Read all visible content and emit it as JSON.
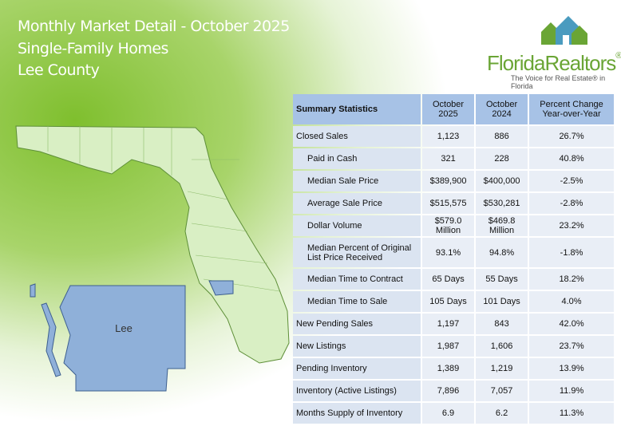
{
  "header": {
    "title": "Monthly Market Detail - October 2025",
    "subtitle": "Single-Family Homes",
    "region": "Lee County"
  },
  "logo": {
    "name": "FloridaRealtors",
    "registered": "®",
    "tagline": "The Voice for Real Estate® in Florida"
  },
  "map": {
    "label": "Lee"
  },
  "table": {
    "header": [
      "Summary Statistics",
      "October 2025",
      "October 2024",
      "Percent Change Year-over-Year"
    ],
    "rows": [
      [
        "Closed Sales",
        "1,123",
        "886",
        "26.7%"
      ],
      [
        "Paid in Cash",
        "321",
        "228",
        "40.8%"
      ],
      [
        "Median Sale Price",
        "$389,900",
        "$400,000",
        "-2.5%"
      ],
      [
        "Average Sale Price",
        "$515,575",
        "$530,281",
        "-2.8%"
      ],
      [
        "Dollar Volume",
        "$579.0 Million",
        "$469.8 Million",
        "23.2%"
      ],
      [
        "Median Percent of Original List Price Received",
        "93.1%",
        "94.8%",
        "-1.8%"
      ],
      [
        "Median Time to Contract",
        "65 Days",
        "55 Days",
        "18.2%"
      ],
      [
        "Median Time to Sale",
        "105 Days",
        "101 Days",
        "4.0%"
      ],
      [
        "New Pending Sales",
        "1,197",
        "843",
        "42.0%"
      ],
      [
        "New Listings",
        "1,987",
        "1,606",
        "23.7%"
      ],
      [
        "Pending Inventory",
        "1,389",
        "1,219",
        "13.9%"
      ],
      [
        "Inventory (Active Listings)",
        "7,896",
        "7,057",
        "11.9%"
      ],
      [
        "Months Supply of Inventory",
        "6.9",
        "6.2",
        "11.3%"
      ]
    ]
  }
}
